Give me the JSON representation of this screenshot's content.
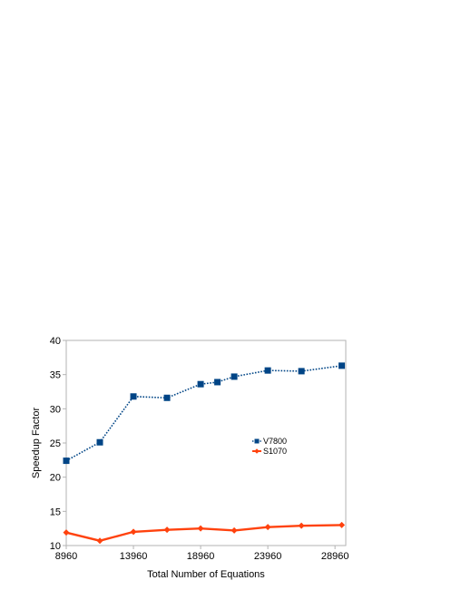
{
  "chart_data": {
    "type": "line",
    "title": "",
    "xlabel": "Total Number of Equations",
    "ylabel": "Speedup Factor",
    "xlim": [
      8960,
      29760
    ],
    "ylim": [
      10,
      40
    ],
    "x_ticks": [
      8960,
      13960,
      18960,
      23960,
      28960
    ],
    "x_tick_labels": [
      "8960",
      "13960",
      "18960",
      "23960",
      "28960"
    ],
    "y_ticks": [
      10,
      15,
      20,
      25,
      30,
      35,
      40
    ],
    "y_tick_labels": [
      "10",
      "15",
      "20",
      "25",
      "30",
      "35",
      "40"
    ],
    "grid": false,
    "legend_position": "center-right",
    "series": [
      {
        "name": "V7800",
        "color": "#004586",
        "line_style": "dotted",
        "marker": "square",
        "x": [
          8960,
          11460,
          13960,
          16460,
          18960,
          20210,
          21460,
          23960,
          26460,
          29460
        ],
        "y": [
          22.4,
          25.1,
          31.8,
          31.6,
          33.6,
          33.9,
          34.7,
          35.6,
          35.5,
          36.3
        ]
      },
      {
        "name": "S1070",
        "color": "#ff420e",
        "line_style": "solid",
        "marker": "diamond",
        "x": [
          8960,
          11460,
          13960,
          16460,
          18960,
          21460,
          23960,
          26460,
          29460
        ],
        "y": [
          11.9,
          10.7,
          12.0,
          12.3,
          12.5,
          12.2,
          12.7,
          12.9,
          13.0
        ]
      }
    ]
  }
}
